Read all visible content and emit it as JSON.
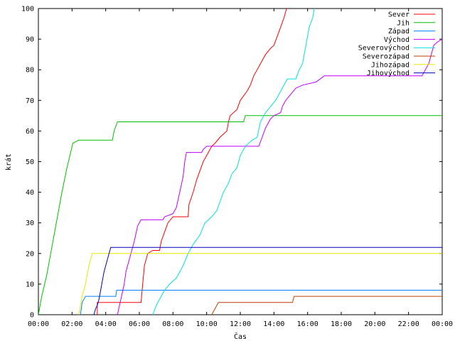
{
  "chart_data": {
    "type": "line",
    "title": "",
    "xlabel": "Čas",
    "ylabel": "krát",
    "xlim": [
      0,
      24
    ],
    "ylim": [
      0,
      100
    ],
    "grid": false,
    "legend_position": "top-right",
    "x_ticks": [
      {
        "value": 0,
        "label": "00:00"
      },
      {
        "value": 2,
        "label": "02:00"
      },
      {
        "value": 4,
        "label": "04:00"
      },
      {
        "value": 6,
        "label": "06:00"
      },
      {
        "value": 8,
        "label": "08:00"
      },
      {
        "value": 10,
        "label": "10:00"
      },
      {
        "value": 12,
        "label": "12:00"
      },
      {
        "value": 14,
        "label": "14:00"
      },
      {
        "value": 16,
        "label": "16:00"
      },
      {
        "value": 18,
        "label": "18:00"
      },
      {
        "value": 20,
        "label": "20:00"
      },
      {
        "value": 22,
        "label": "22:00"
      },
      {
        "value": 24,
        "label": "00:00"
      }
    ],
    "y_ticks": [
      {
        "value": 0,
        "label": "0"
      },
      {
        "value": 10,
        "label": "10"
      },
      {
        "value": 20,
        "label": "20"
      },
      {
        "value": 30,
        "label": "30"
      },
      {
        "value": 40,
        "label": "40"
      },
      {
        "value": 50,
        "label": "50"
      },
      {
        "value": 60,
        "label": "60"
      },
      {
        "value": 70,
        "label": "70"
      },
      {
        "value": 80,
        "label": "80"
      },
      {
        "value": 90,
        "label": "90"
      },
      {
        "value": 100,
        "label": "100"
      }
    ],
    "series": [
      {
        "name": "Sever",
        "color": "#ff0000",
        "points": [
          [
            3.5,
            0
          ],
          [
            3.5,
            4
          ],
          [
            6.1,
            4
          ],
          [
            6.2,
            10
          ],
          [
            6.3,
            16
          ],
          [
            6.5,
            20
          ],
          [
            6.8,
            21
          ],
          [
            7.2,
            21
          ],
          [
            7.3,
            24
          ],
          [
            7.5,
            27
          ],
          [
            7.7,
            30
          ],
          [
            8.0,
            32
          ],
          [
            8.6,
            32
          ],
          [
            8.9,
            32
          ],
          [
            8.95,
            36
          ],
          [
            9.2,
            40
          ],
          [
            9.4,
            44
          ],
          [
            9.6,
            47
          ],
          [
            9.8,
            50
          ],
          [
            10.0,
            52
          ],
          [
            10.3,
            55
          ],
          [
            10.5,
            56
          ],
          [
            10.8,
            58
          ],
          [
            11.2,
            60
          ],
          [
            11.3,
            63
          ],
          [
            11.4,
            65
          ],
          [
            11.8,
            67
          ],
          [
            12.0,
            70
          ],
          [
            12.4,
            73
          ],
          [
            12.6,
            75
          ],
          [
            12.8,
            78
          ],
          [
            13.2,
            82
          ],
          [
            13.5,
            85
          ],
          [
            13.8,
            87
          ],
          [
            14.0,
            88
          ],
          [
            14.2,
            91
          ],
          [
            14.4,
            94
          ],
          [
            14.6,
            97
          ],
          [
            14.75,
            100
          ]
        ]
      },
      {
        "name": "Jih",
        "color": "#00c000",
        "points": [
          [
            0,
            0
          ],
          [
            0.2,
            6
          ],
          [
            0.5,
            13
          ],
          [
            0.8,
            22
          ],
          [
            1.1,
            31
          ],
          [
            1.4,
            40
          ],
          [
            1.7,
            48
          ],
          [
            2.05,
            56
          ],
          [
            2.4,
            57
          ],
          [
            4.4,
            57
          ],
          [
            4.5,
            60
          ],
          [
            4.7,
            63
          ],
          [
            12.2,
            63
          ],
          [
            12.3,
            65
          ],
          [
            24,
            65
          ]
        ]
      },
      {
        "name": "Západ",
        "color": "#0080ff",
        "points": [
          [
            2.5,
            0
          ],
          [
            2.6,
            4
          ],
          [
            2.8,
            6
          ],
          [
            4.6,
            6
          ],
          [
            4.65,
            8
          ],
          [
            24,
            8
          ]
        ]
      },
      {
        "name": "Východ",
        "color": "#c000ff",
        "points": [
          [
            4.7,
            0
          ],
          [
            4.9,
            5
          ],
          [
            5.1,
            10
          ],
          [
            5.2,
            14
          ],
          [
            5.5,
            20
          ],
          [
            5.7,
            24
          ],
          [
            5.9,
            29
          ],
          [
            6.1,
            31
          ],
          [
            7.4,
            31
          ],
          [
            7.5,
            32
          ],
          [
            8.0,
            33
          ],
          [
            8.2,
            35
          ],
          [
            8.4,
            40
          ],
          [
            8.6,
            45
          ],
          [
            8.7,
            50
          ],
          [
            8.8,
            53
          ],
          [
            9.7,
            53
          ],
          [
            9.8,
            54
          ],
          [
            10.0,
            55
          ],
          [
            13.1,
            55
          ],
          [
            13.3,
            58
          ],
          [
            13.5,
            61
          ],
          [
            13.7,
            63
          ],
          [
            13.8,
            64
          ],
          [
            14.0,
            65
          ],
          [
            14.4,
            66
          ],
          [
            14.5,
            68
          ],
          [
            14.7,
            70
          ],
          [
            15.0,
            72
          ],
          [
            15.3,
            74
          ],
          [
            15.7,
            75
          ],
          [
            16.5,
            76
          ],
          [
            17.0,
            78
          ],
          [
            22.8,
            78
          ],
          [
            23.0,
            80
          ],
          [
            23.2,
            82
          ],
          [
            23.5,
            88
          ],
          [
            23.7,
            89
          ],
          [
            24,
            90
          ]
        ]
      },
      {
        "name": "Severovýchod",
        "color": "#00e0e0",
        "points": [
          [
            6.8,
            0
          ],
          [
            7.0,
            3
          ],
          [
            7.2,
            5
          ],
          [
            7.5,
            8
          ],
          [
            7.8,
            10
          ],
          [
            8.2,
            12
          ],
          [
            8.6,
            16
          ],
          [
            8.9,
            20
          ],
          [
            9.2,
            23
          ],
          [
            9.6,
            26
          ],
          [
            9.9,
            30
          ],
          [
            10.3,
            32
          ],
          [
            10.6,
            34
          ],
          [
            10.8,
            37
          ],
          [
            11.0,
            40
          ],
          [
            11.3,
            43
          ],
          [
            11.5,
            46
          ],
          [
            11.8,
            48
          ],
          [
            12.0,
            52
          ],
          [
            12.3,
            55
          ],
          [
            12.7,
            57
          ],
          [
            13.0,
            58
          ],
          [
            13.2,
            63
          ],
          [
            13.5,
            66
          ],
          [
            13.8,
            68
          ],
          [
            14.1,
            70
          ],
          [
            14.4,
            73
          ],
          [
            14.6,
            75
          ],
          [
            14.8,
            77
          ],
          [
            15.3,
            77
          ],
          [
            15.5,
            80
          ],
          [
            15.7,
            82
          ],
          [
            15.9,
            88
          ],
          [
            16.1,
            94
          ],
          [
            16.3,
            97
          ],
          [
            16.4,
            100
          ]
        ]
      },
      {
        "name": "Severozápad",
        "color": "#c04000",
        "points": [
          [
            10.3,
            0
          ],
          [
            10.5,
            2
          ],
          [
            10.7,
            4
          ],
          [
            15.1,
            4
          ],
          [
            15.2,
            6
          ],
          [
            24,
            6
          ]
        ]
      },
      {
        "name": "Jihozápad",
        "color": "#e8e800",
        "points": [
          [
            2.4,
            0
          ],
          [
            2.5,
            3
          ],
          [
            2.6,
            6
          ],
          [
            2.8,
            10
          ],
          [
            3.0,
            16
          ],
          [
            3.2,
            20
          ],
          [
            24,
            20
          ]
        ]
      },
      {
        "name": "Jihovýchod",
        "color": "#0000c0",
        "points": [
          [
            3.3,
            0
          ],
          [
            3.4,
            2
          ],
          [
            3.5,
            3
          ],
          [
            3.6,
            5
          ],
          [
            3.7,
            8
          ],
          [
            3.9,
            14
          ],
          [
            4.1,
            18
          ],
          [
            4.3,
            22
          ],
          [
            24,
            22
          ]
        ]
      }
    ]
  }
}
